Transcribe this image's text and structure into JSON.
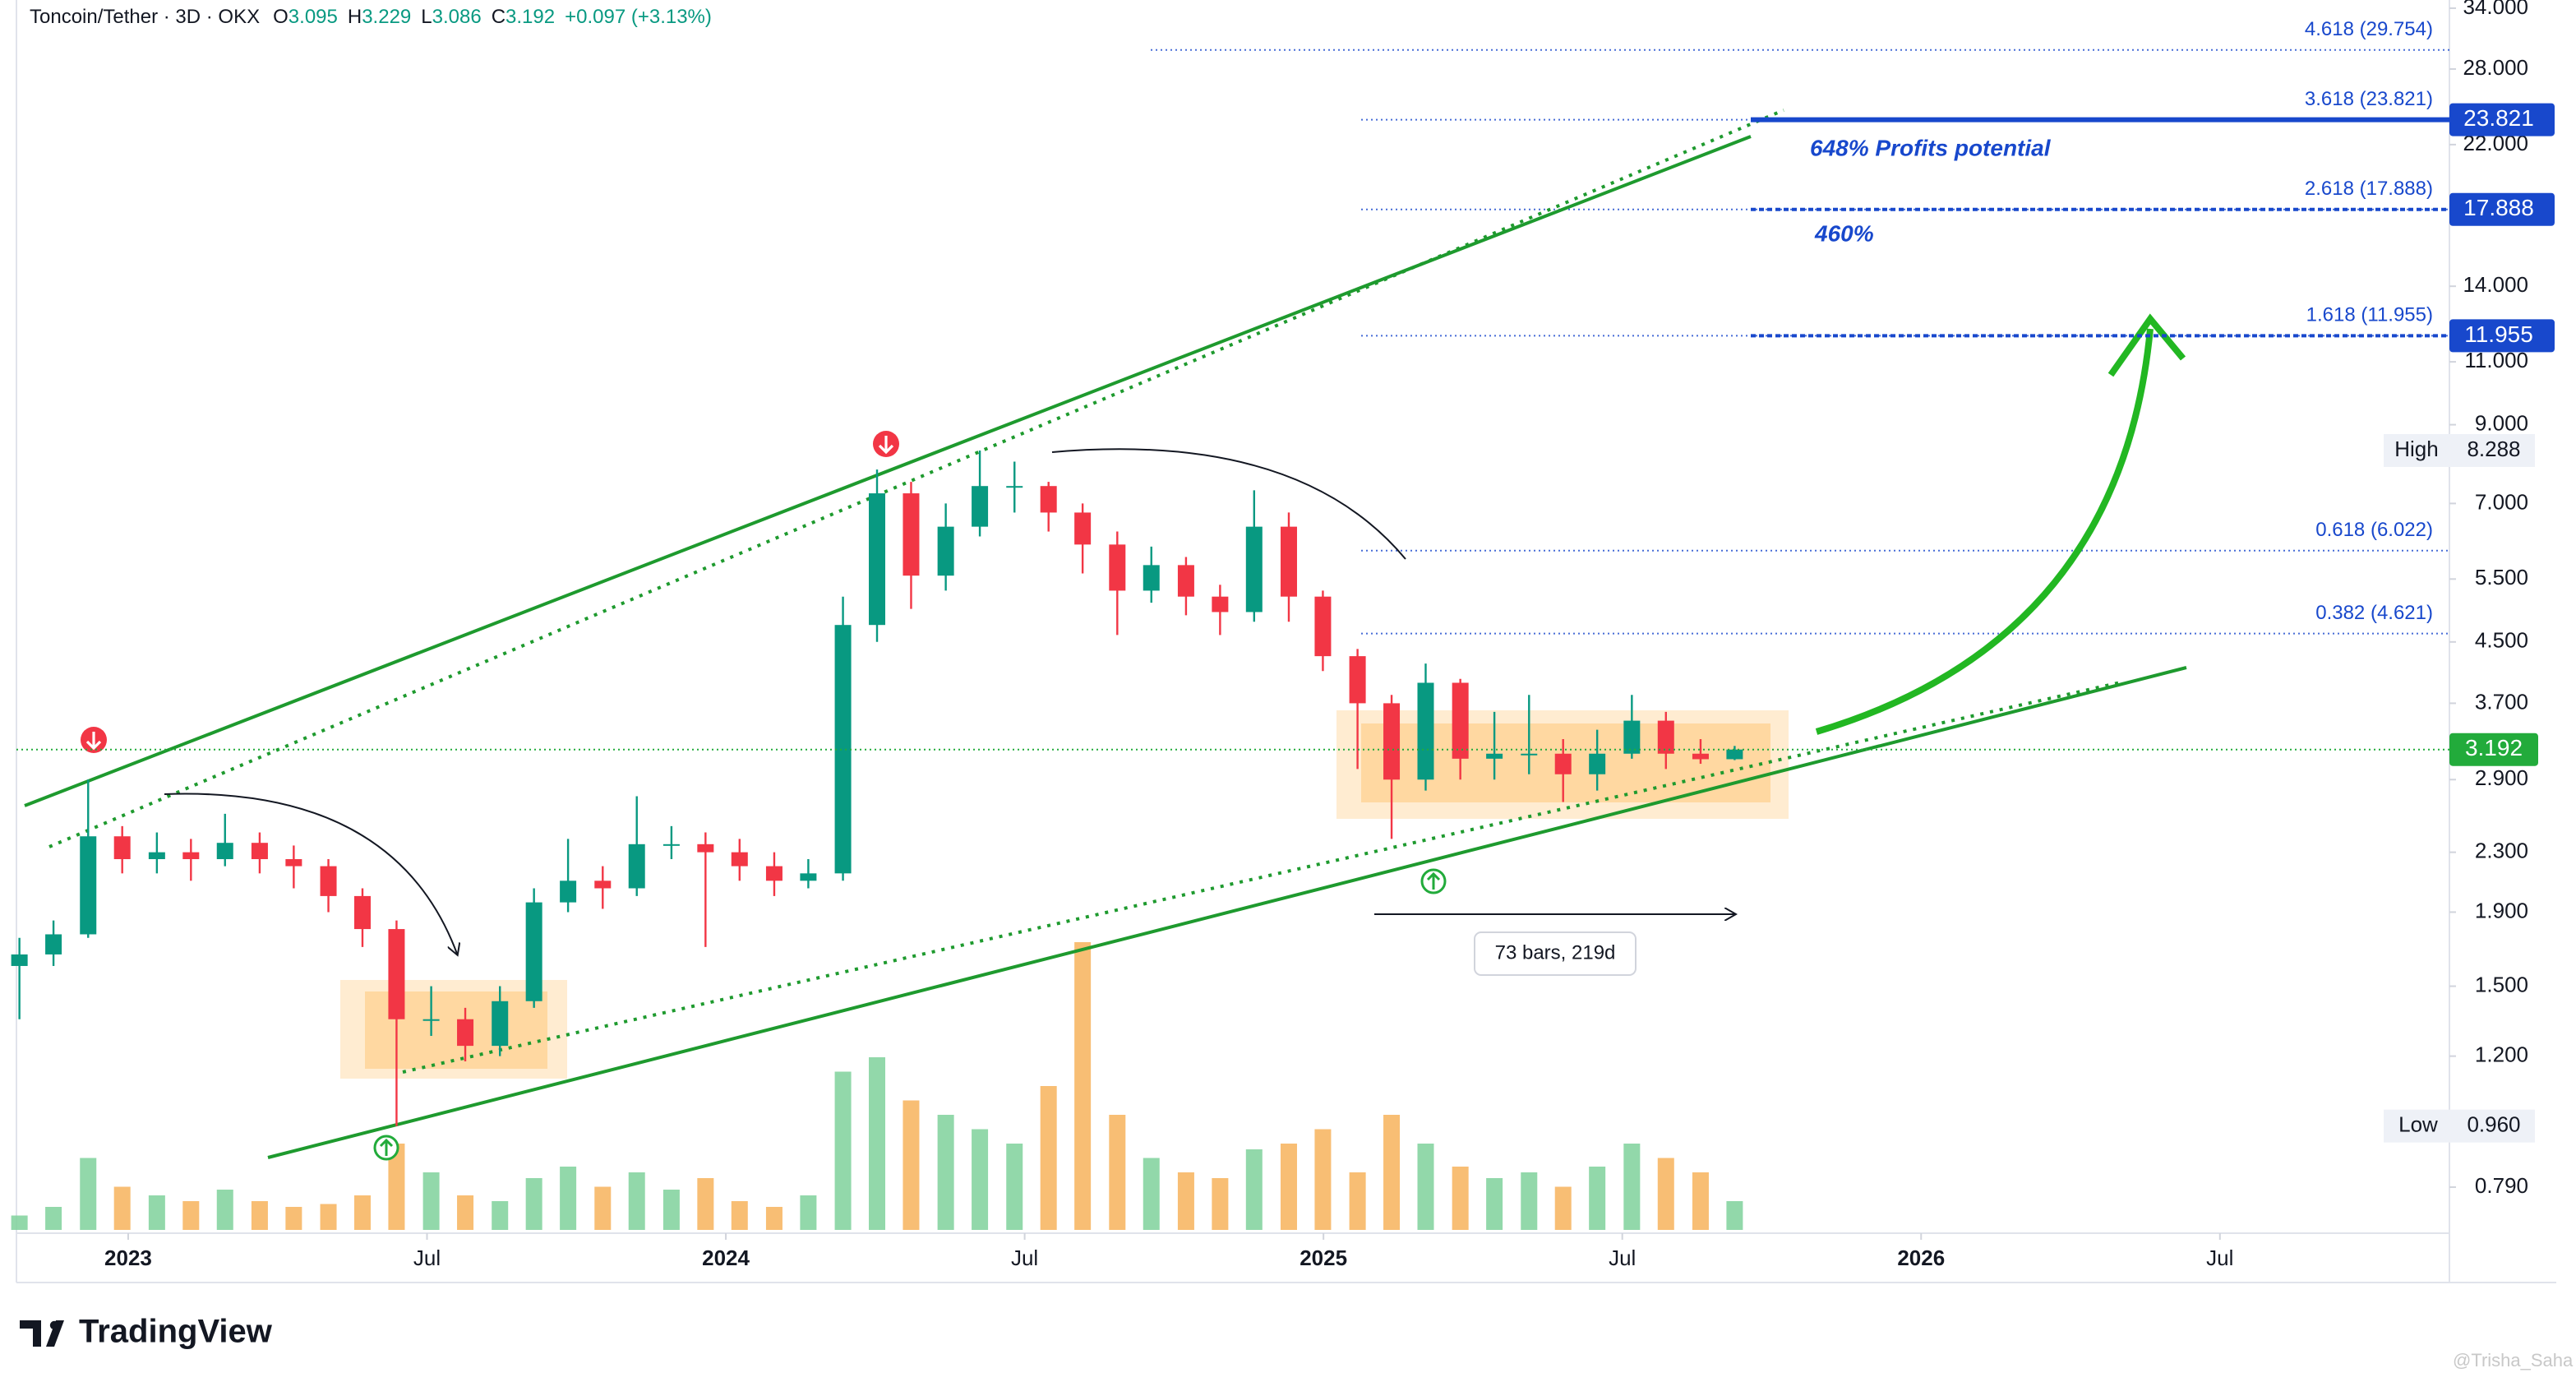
{
  "chart_data": {
    "type": "candlestick",
    "header": {
      "symbol": "Toncoin/Tether · 3D · OKX",
      "letters": [
        "O",
        "H",
        "L",
        "C"
      ],
      "change": "+0.097 (+3.13%)"
    },
    "x": [
      2022.818,
      2022.875,
      2022.933,
      2022.99,
      2023.048,
      2023.105,
      2023.162,
      2023.22,
      2023.277,
      2023.335,
      2023.392,
      2023.449,
      2023.507,
      2023.564,
      2023.622,
      2023.679,
      2023.736,
      2023.794,
      2023.851,
      2023.909,
      2023.966,
      2024.023,
      2024.081,
      2024.138,
      2024.196,
      2024.253,
      2024.31,
      2024.368,
      2024.425,
      2024.483,
      2024.54,
      2024.597,
      2024.655,
      2024.712,
      2024.77,
      2024.827,
      2024.884,
      2024.942,
      2024.999,
      2025.057,
      2025.114,
      2025.171,
      2025.229,
      2025.286,
      2025.344,
      2025.401,
      2025.458,
      2025.516,
      2025.573,
      2025.631,
      2025.688
    ],
    "open": [
      1.6,
      1.66,
      1.77,
      2.42,
      2.25,
      2.3,
      2.25,
      2.37,
      2.25,
      2.2,
      2.0,
      1.8,
      1.35,
      1.35,
      1.24,
      1.43,
      1.96,
      2.1,
      2.05,
      2.36,
      2.36,
      2.3,
      2.2,
      2.1,
      2.15,
      4.75,
      7.23,
      5.56,
      6.5,
      7.4,
      7.4,
      6.8,
      6.14,
      5.3,
      5.75,
      5.2,
      4.95,
      6.5,
      5.2,
      4.3,
      3.7,
      2.9,
      3.95,
      3.1,
      3.15,
      3.15,
      2.95,
      3.15,
      3.5,
      3.15,
      3.095
    ],
    "high": [
      1.75,
      1.85,
      2.9,
      2.5,
      2.45,
      2.4,
      2.6,
      2.45,
      2.35,
      2.25,
      2.05,
      1.85,
      1.5,
      1.4,
      1.5,
      2.05,
      2.4,
      2.2,
      2.75,
      2.5,
      2.45,
      2.4,
      2.3,
      2.25,
      5.2,
      7.8,
      7.5,
      7.0,
      8.288,
      8.0,
      7.5,
      7.0,
      6.4,
      6.1,
      5.9,
      5.4,
      7.3,
      6.8,
      5.3,
      4.4,
      3.8,
      4.2,
      4.0,
      3.6,
      3.8,
      3.3,
      3.4,
      3.8,
      3.6,
      3.3,
      3.229
    ],
    "low": [
      1.35,
      1.6,
      1.75,
      2.15,
      2.15,
      2.1,
      2.2,
      2.15,
      2.05,
      1.9,
      1.7,
      0.96,
      1.28,
      1.18,
      1.2,
      1.4,
      1.9,
      1.92,
      2.0,
      2.25,
      1.7,
      2.1,
      2.0,
      2.05,
      2.1,
      4.5,
      5.0,
      5.3,
      6.3,
      6.8,
      6.4,
      5.6,
      4.6,
      5.1,
      4.9,
      4.6,
      4.8,
      4.8,
      4.1,
      3.0,
      2.4,
      2.8,
      2.9,
      2.9,
      2.95,
      2.7,
      2.8,
      3.1,
      3.0,
      3.05,
      3.086
    ],
    "close": [
      1.66,
      1.77,
      2.42,
      2.25,
      2.3,
      2.25,
      2.37,
      2.25,
      2.2,
      2.0,
      1.8,
      1.35,
      1.35,
      1.24,
      1.43,
      1.96,
      2.1,
      2.05,
      2.36,
      2.36,
      2.3,
      2.2,
      2.1,
      2.15,
      4.75,
      7.23,
      5.56,
      6.5,
      7.4,
      7.4,
      6.8,
      6.14,
      5.3,
      5.75,
      5.2,
      4.95,
      6.5,
      5.2,
      4.3,
      3.7,
      2.9,
      3.95,
      3.1,
      3.15,
      3.15,
      2.95,
      3.15,
      3.5,
      3.15,
      3.095,
      3.192
    ],
    "volume": [
      5,
      8,
      25,
      15,
      12,
      10,
      14,
      10,
      8,
      9,
      12,
      30,
      20,
      12,
      10,
      18,
      22,
      15,
      20,
      14,
      18,
      10,
      8,
      12,
      55,
      60,
      45,
      40,
      35,
      30,
      50,
      100,
      40,
      25,
      20,
      18,
      28,
      30,
      35,
      20,
      40,
      30,
      22,
      18,
      20,
      15,
      22,
      30,
      25,
      20,
      10
    ],
    "up_color": "#089981",
    "down_color": "#f23645",
    "volume_up_color": "#7fd19b",
    "volume_down_color": "#f7b35c",
    "log_scale": true,
    "xlim": [
      2022.813,
      2026.884
    ],
    "xticks": [
      2023,
      {
        "value": 2023.5,
        "label": "Jul"
      },
      2024,
      {
        "value": 2024.5,
        "label": "Jul"
      },
      2025,
      {
        "value": 2025.5,
        "label": "Jul"
      },
      2026,
      {
        "value": 2026.5,
        "label": "Jul"
      }
    ],
    "ylim": [
      0.682,
      34.9
    ],
    "yticks": [
      {
        "value": 34,
        "label": "34.000"
      },
      {
        "value": 28,
        "label": "28.000"
      },
      {
        "value": 22,
        "label": "22.000"
      },
      {
        "value": 14,
        "label": "14.000"
      },
      {
        "value": 11,
        "label": "11.000"
      },
      {
        "value": 9,
        "label": "9.000"
      },
      {
        "value": 7,
        "label": "7.000"
      },
      {
        "value": 5.5,
        "label": "5.500"
      },
      {
        "value": 4.5,
        "label": "4.500"
      },
      {
        "value": 3.7,
        "label": "3.700"
      },
      {
        "value": 2.9,
        "label": "2.900"
      },
      {
        "value": 2.3,
        "label": "2.300"
      },
      {
        "value": 1.9,
        "label": "1.900"
      },
      {
        "value": 1.5,
        "label": "1.500"
      },
      {
        "value": 1.2,
        "label": "1.200"
      },
      {
        "value": 0.79,
        "label": "0.790"
      }
    ],
    "fib_levels": [
      {
        "value": 29.754,
        "label": "4.618 (29.754)",
        "tagged": false
      },
      {
        "value": 23.821,
        "label": "3.618 (23.821)",
        "tagged": true
      },
      {
        "value": 17.888,
        "label": "2.618 (17.888)",
        "tagged": true
      },
      {
        "value": 11.955,
        "label": "1.618 (11.955)",
        "tagged": true
      },
      {
        "value": 6.022,
        "label": "0.618 (6.022)",
        "tagged": false
      },
      {
        "value": 4.621,
        "label": "0.382 (4.621)",
        "tagged": false
      }
    ],
    "fib_color": "#1848cc",
    "high_tag": {
      "name": "High"
    },
    "low_tag": {
      "name": "Low",
      "value": 0.96,
      "label": "0.960"
    },
    "annotations": [
      "648% Profits potential",
      "460%"
    ],
    "measure": "73 bars, 219d",
    "brand": "TradingView",
    "watermark": "@Trisha_Saha"
  }
}
